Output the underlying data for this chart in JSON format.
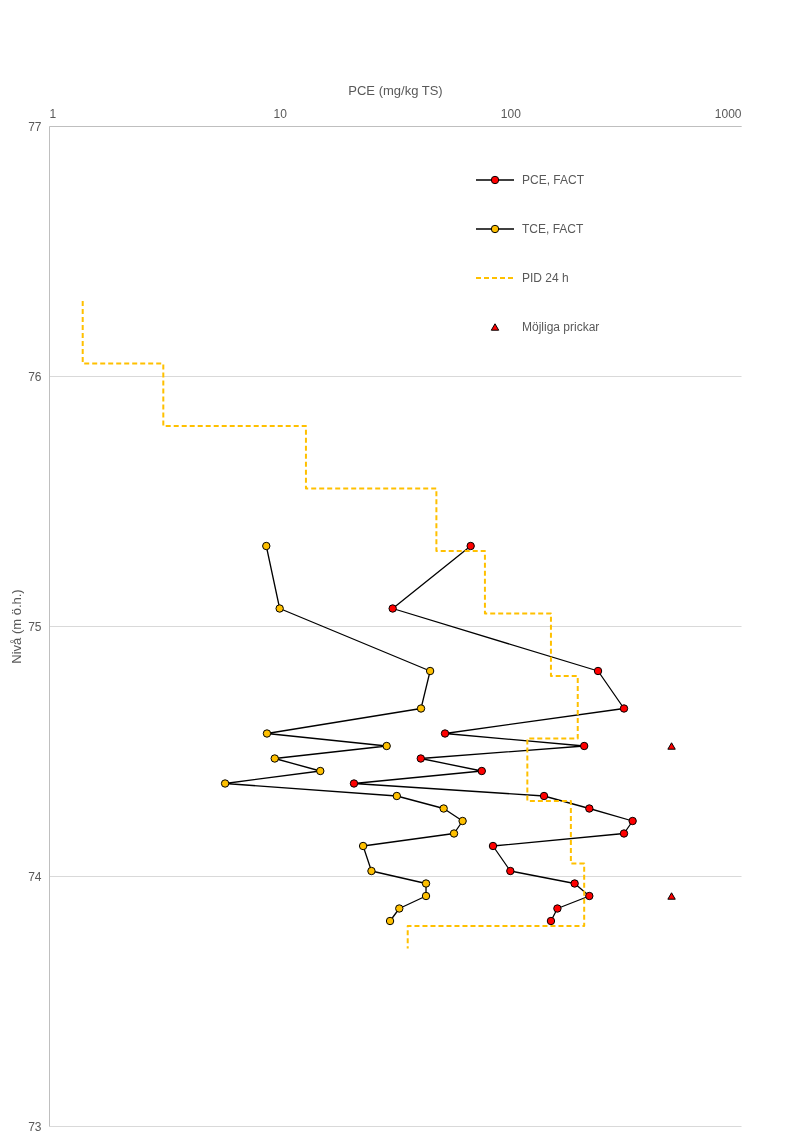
{
  "chart_data": {
    "type": "line",
    "xlabel": "PCE (mg/kg TS)",
    "ylabel": "Nivå (m ö.h.)",
    "log": "x",
    "xlim": [
      1,
      1000
    ],
    "xticks": [
      1,
      10,
      100,
      1000
    ],
    "ylim": [
      73,
      77
    ],
    "yticks": [
      73,
      74,
      75,
      76,
      77
    ],
    "grid": "y",
    "legend": "top right",
    "series": [
      {
        "name": "PCE, FACT",
        "marker": "circle",
        "color": "#ff0000",
        "x": [
          67.3,
          30.9,
          240,
          311,
          52.1,
          209,
          40.9,
          75.2,
          21.0,
          140,
          220,
          339,
          311,
          84.1,
          100,
          190,
          220,
          160,
          150
        ],
        "values": [
          75.32,
          75.07,
          74.82,
          74.67,
          74.57,
          74.52,
          74.47,
          74.42,
          74.37,
          74.32,
          74.27,
          74.22,
          74.17,
          74.12,
          74.02,
          73.97,
          73.92,
          73.87,
          73.82
        ]
      },
      {
        "name": "TCE, FACT",
        "marker": "circle",
        "color": "#ffc000",
        "x": [
          8.75,
          10.0,
          44.9,
          41.0,
          8.81,
          29.1,
          9.52,
          15.0,
          5.8,
          32.2,
          51.4,
          62.1,
          57.0,
          23.0,
          25.0,
          43.1,
          43.1,
          33.0,
          30.1
        ],
        "values": [
          75.32,
          75.07,
          74.82,
          74.67,
          74.57,
          74.52,
          74.47,
          74.42,
          74.37,
          74.32,
          74.27,
          74.22,
          74.17,
          74.12,
          74.02,
          73.97,
          73.92,
          73.87,
          73.82
        ]
      },
      {
        "name": "PID 24 h",
        "marker": "none",
        "line_style": "dashed",
        "color": "#ffc000",
        "x": [
          1.4,
          1.4,
          3.13,
          3.13,
          13.0,
          13.0,
          47.8,
          47.8,
          77.6,
          77.6,
          150,
          150,
          196,
          196,
          118.5,
          118.5,
          183,
          183,
          209,
          209,
          35.9,
          35.9
        ],
        "values": [
          76.3,
          76.05,
          76.05,
          75.8,
          75.8,
          75.55,
          75.55,
          75.3,
          75.3,
          75.05,
          75.05,
          74.8,
          74.8,
          74.55,
          74.55,
          74.3,
          74.3,
          74.05,
          74.05,
          73.8,
          73.8,
          73.71
        ]
      },
      {
        "name": "Möjliga prickar",
        "type": "scatter",
        "marker": "triangle",
        "color": "#ff0000",
        "x": [
          500,
          500
        ],
        "values": [
          74.52,
          73.92
        ]
      }
    ]
  }
}
